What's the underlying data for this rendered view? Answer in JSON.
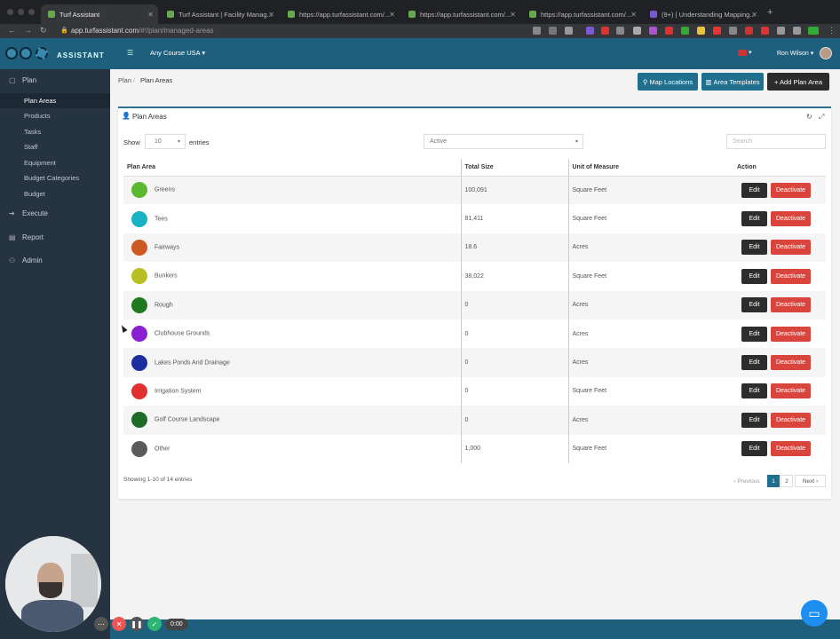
{
  "browser": {
    "tabs": [
      {
        "title": "Turf Assistant",
        "active": true
      },
      {
        "title": "Turf Assistant | Facility Manag...",
        "active": false
      },
      {
        "title": "https://app.turfassistant.com/...",
        "active": false
      },
      {
        "title": "https://app.turfassistant.com/...",
        "active": false
      },
      {
        "title": "https://app.turfassistant.com/...",
        "active": false
      },
      {
        "title": "(9+) | Understanding Mapping...",
        "active": false
      }
    ],
    "url_host": "app.turfassistant.com",
    "url_path": "/#!/plan/managed-areas"
  },
  "header": {
    "logo_text": "ASSISTANT",
    "course": "Any Course USA ▾",
    "user": "Ron Wilson ▾",
    "flag_caret": "▾"
  },
  "sidebar": {
    "sections": [
      {
        "label": "Plan",
        "icon": "plan-icon"
      },
      {
        "label": "Execute",
        "icon": "execute-icon"
      },
      {
        "label": "Report",
        "icon": "report-icon"
      },
      {
        "label": "Admin",
        "icon": "admin-icon"
      }
    ],
    "plan_items": [
      "Plan Areas",
      "Products",
      "Tasks",
      "Staff",
      "Equipment",
      "Budget Categories",
      "Budget"
    ],
    "active_item": "Plan Areas"
  },
  "breadcrumb": {
    "root": "Plan",
    "sep": "/",
    "current": "Plan Areas"
  },
  "toolbar": {
    "map_locations": "Map Locations",
    "area_templates": "Area Templates",
    "add_plan_area": "+ Add Plan Area"
  },
  "panel": {
    "title": "Plan Areas",
    "show_label": "Show",
    "entries_value": "10",
    "entries_label": "entries",
    "status_filter": "Active",
    "search_placeholder": "Search",
    "columns": [
      "Plan Area",
      "Total Size",
      "Unit of Measure",
      "Action"
    ],
    "rows": [
      {
        "name": "Greens",
        "size": "100,091",
        "unit": "Square Feet",
        "color": "#5cb82e"
      },
      {
        "name": "Tees",
        "size": "81,411",
        "unit": "Square Feet",
        "color": "#17b3c4"
      },
      {
        "name": "Fairways",
        "size": "18.6",
        "unit": "Acres",
        "color": "#cc5a22"
      },
      {
        "name": "Bunkers",
        "size": "38,022",
        "unit": "Square Feet",
        "color": "#b8bf22"
      },
      {
        "name": "Rough",
        "size": "0",
        "unit": "Acres",
        "color": "#1f7a1f"
      },
      {
        "name": "Clubhouse Grounds",
        "size": "0",
        "unit": "Acres",
        "color": "#8a1fd1"
      },
      {
        "name": "Lakes Ponds And Drainage",
        "size": "0",
        "unit": "Acres",
        "color": "#1c2f9e"
      },
      {
        "name": "Irrigation System",
        "size": "0",
        "unit": "Square Feet",
        "color": "#e03030"
      },
      {
        "name": "Golf Course Landscape",
        "size": "0",
        "unit": "Acres",
        "color": "#1e6b28"
      },
      {
        "name": "Other",
        "size": "1,000",
        "unit": "Square Feet",
        "color": "#5a5a5a"
      }
    ],
    "edit_label": "Edit",
    "deactivate_label": "Deactivate",
    "showing_text": "Showing 1-10 of 14 entries",
    "pagination": {
      "previous": "‹ Previous",
      "pages": [
        "1",
        "2"
      ],
      "current": "1",
      "next": "Next ›"
    }
  },
  "recorder": {
    "time": "0:00"
  },
  "colors": {
    "header": "#1f5f7e",
    "sidebar": "#263340",
    "danger": "#d9453d",
    "dark": "#2d2d2d",
    "accent": "#1f6f8f"
  }
}
